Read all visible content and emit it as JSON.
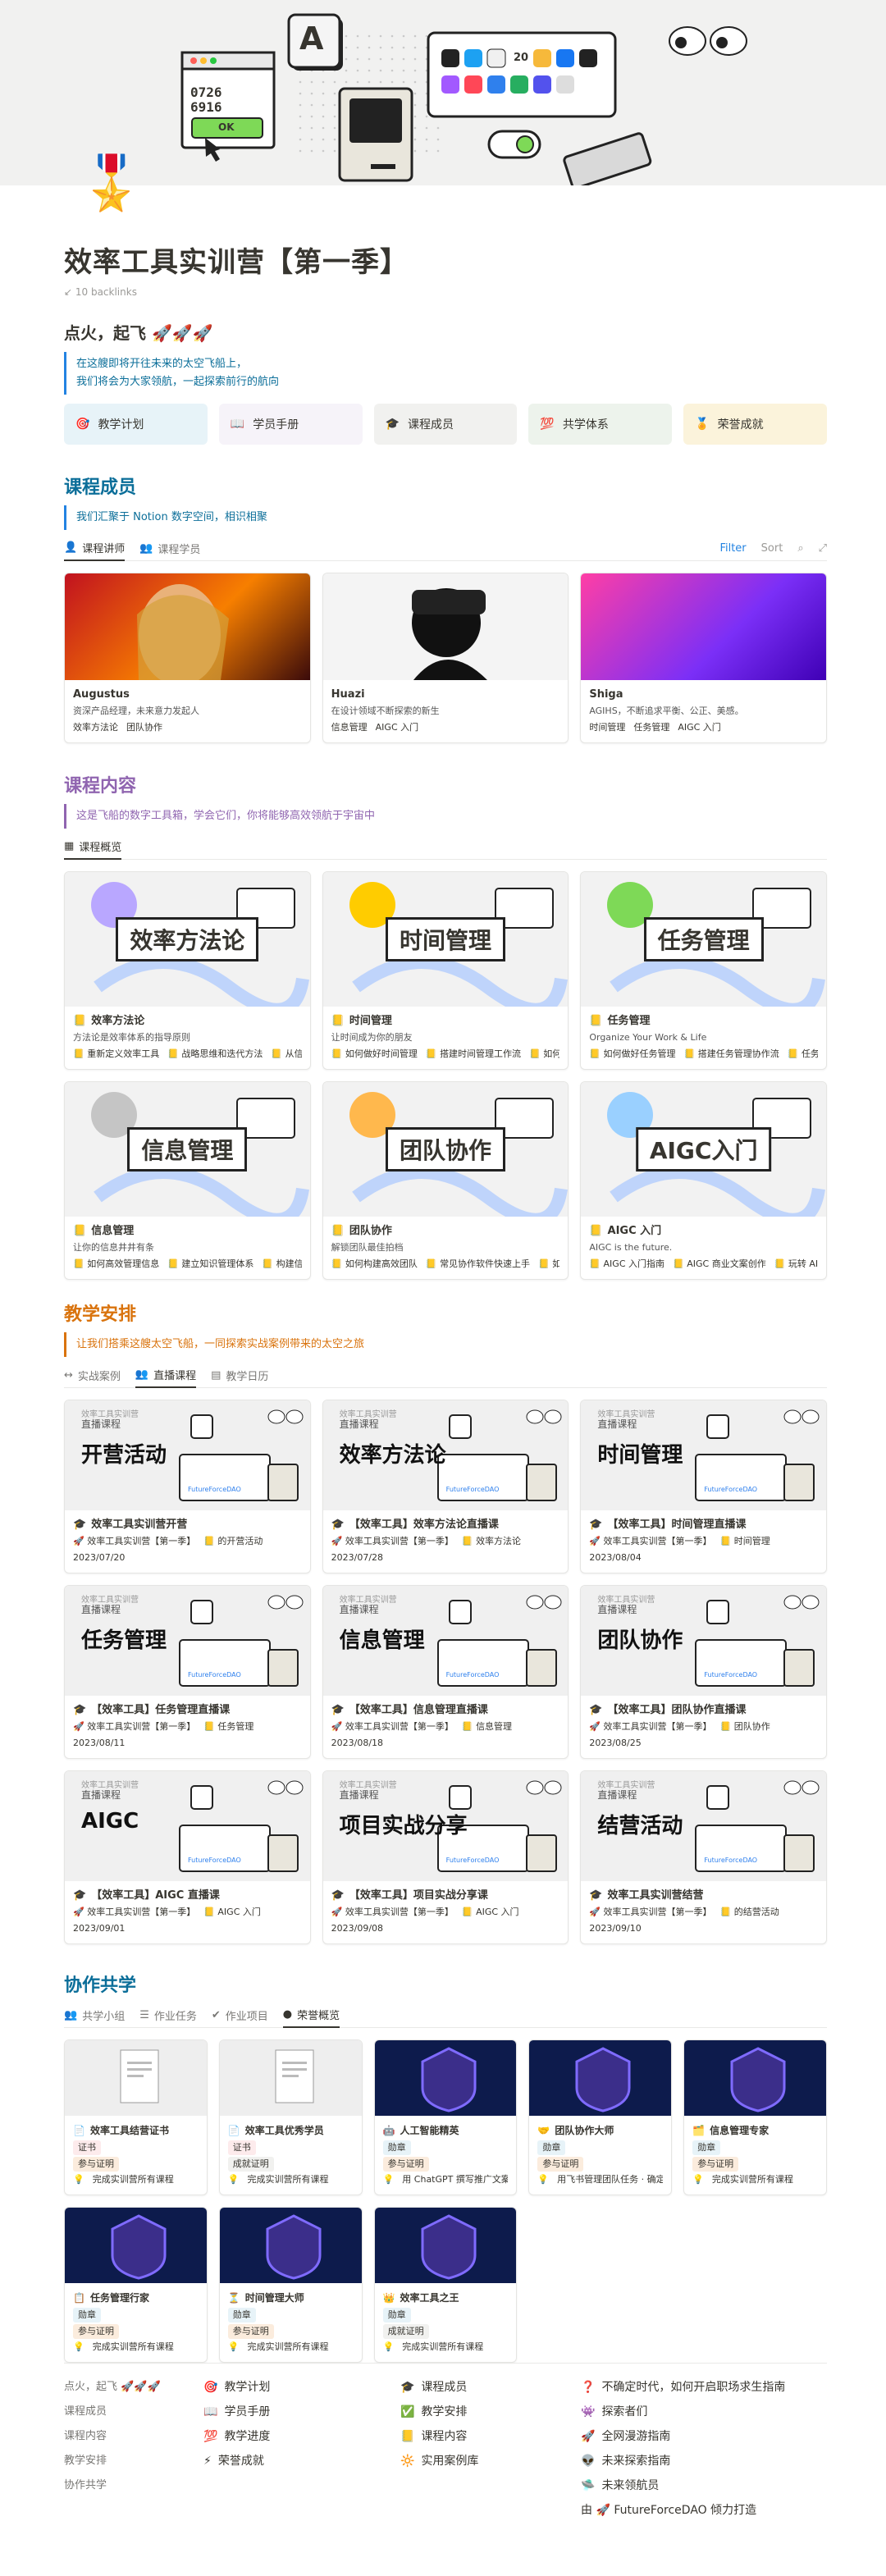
{
  "page": {
    "title": "效率工具实训营【第一季】",
    "backlinks": "10 backlinks",
    "icon": "🎖️"
  },
  "cover": {
    "window_code": "0726\n6916",
    "ok": "OK",
    "date_icon": "20"
  },
  "intro": {
    "heading": "点火，起飞 🚀🚀🚀",
    "callout": [
      "在这艘即将开往未来的太空飞船上，",
      "我们将会为大家领航，一起探索前行的航向"
    ]
  },
  "nav": [
    {
      "icon": "🎯",
      "label": "教学计划",
      "bg": "#e7f3f8"
    },
    {
      "icon": "📖",
      "label": "学员手册",
      "bg": "#f6f3f9"
    },
    {
      "icon": "🎓",
      "label": "课程成员",
      "bg": "#f1f1ef"
    },
    {
      "icon": "💯",
      "label": "共学体系",
      "bg": "#edf3ec"
    },
    {
      "icon": "🏅",
      "label": "荣誉成就",
      "bg": "#fbf3db"
    }
  ],
  "members": {
    "title": "课程成员",
    "color": "#0b6e99",
    "callout": "我们汇聚于 Notion 数字空间，相识相聚",
    "tabs": [
      "课程讲师",
      "课程学员"
    ],
    "filter": "Filter",
    "sort": "Sort",
    "cards": [
      {
        "name": "Augustus",
        "desc": "资深产品经理，未来意力发起人",
        "tags": [
          "效率方法论",
          "团队协作"
        ],
        "bg": "linear-gradient(135deg,#c1121f,#f77f00 55%,#3a0a0a)"
      },
      {
        "name": "Huazi",
        "desc": "在设计领域不断探索的新生",
        "tags": [
          "信息管理",
          "AIGC 入门"
        ],
        "bg": "#f4f4f4"
      },
      {
        "name": "Shiga",
        "desc": "AGIHS，不断追求平衡、公正、美感。",
        "tags": [
          "时间管理",
          "任务管理",
          "AIGC 入门"
        ],
        "bg": "linear-gradient(135deg,#ff3ea5,#7b2ff7 60%,#3f00b5)"
      }
    ]
  },
  "content": {
    "title": "课程内容",
    "color": "#9065b0",
    "callout": "这是飞船的数字工具箱，学会它们，你将能够高效领航于宇宙中",
    "tab": "课程概览",
    "cards": [
      {
        "label": "效率方法论",
        "name": "效率方法论",
        "desc": "方法论是效率体系的指导原则",
        "tags": [
          "重新定义效率工具",
          "战略思维和迭代方法",
          "从信息系统"
        ]
      },
      {
        "label": "时间管理",
        "name": "时间管理",
        "desc": "让时间成为你的朋友",
        "tags": [
          "如何做好时间管理",
          "搭建时间管理工作流",
          "如何确定优"
        ]
      },
      {
        "label": "任务管理",
        "name": "任务管理",
        "desc": "Organize Your Work & Life",
        "tags": [
          "如何做好任务管理",
          "搭建任务管理协作流",
          "任务管理从"
        ]
      },
      {
        "label": "信息管理",
        "name": "信息管理",
        "desc": "让你的信息井井有条",
        "tags": [
          "如何高效管理信息",
          "建立知识管理体系",
          "构建信息管理"
        ]
      },
      {
        "label": "团队协作",
        "name": "团队协作",
        "desc": "解锁团队最佳拍档",
        "tags": [
          "如何构建高效团队",
          "常见协作软件快速上手",
          "如何建立"
        ]
      },
      {
        "label": "AIGC入门",
        "name": "AIGC 入门",
        "desc": "AIGC is the future.",
        "tags": [
          "AIGC 入门指南",
          "AIGC 商业文案创作",
          "玩转 AIGC 文生"
        ]
      }
    ]
  },
  "schedule": {
    "title": "教学安排",
    "color": "#d9730d",
    "callout": "让我们搭乘这艘太空飞船，一同探索实战案例带来的太空之旅",
    "tabs": [
      "实战案例",
      "直播课程",
      "教学日历"
    ],
    "brand": "FutureForceDAO",
    "kicker": "效率工具实训营",
    "sub": "直播课程",
    "cards": [
      {
        "big": "开营活动",
        "name": "效率工具实训营开营",
        "course": "效率工具实训营【第一季】",
        "topic": "的开营活动",
        "date": "2023/07/20"
      },
      {
        "big": "效率方法论",
        "name": "【效率工具】效率方法论直播课",
        "course": "效率工具实训营【第一季】",
        "topic": "效率方法论",
        "date": "2023/07/28"
      },
      {
        "big": "时间管理",
        "name": "【效率工具】时间管理直播课",
        "course": "效率工具实训营【第一季】",
        "topic": "时间管理",
        "date": "2023/08/04"
      },
      {
        "big": "任务管理",
        "name": "【效率工具】任务管理直播课",
        "course": "效率工具实训营【第一季】",
        "topic": "任务管理",
        "date": "2023/08/11"
      },
      {
        "big": "信息管理",
        "name": "【效率工具】信息管理直播课",
        "course": "效率工具实训营【第一季】",
        "topic": "信息管理",
        "date": "2023/08/18"
      },
      {
        "big": "团队协作",
        "name": "【效率工具】团队协作直播课",
        "course": "效率工具实训营【第一季】",
        "topic": "团队协作",
        "date": "2023/08/25"
      },
      {
        "big": "AIGC",
        "name": "【效率工具】AIGC 直播课",
        "course": "效率工具实训营【第一季】",
        "topic": "AIGC 入门",
        "date": "2023/09/01"
      },
      {
        "big": "项目实战分享",
        "name": "【效率工具】项目实战分享课",
        "course": "效率工具实训营【第一季】",
        "topic": "AIGC 入门",
        "date": "2023/09/08"
      },
      {
        "big": "结营活动",
        "name": "效率工具实训营结营",
        "course": "效率工具实训营【第一季】",
        "topic": "的结营活动",
        "date": "2023/09/10"
      }
    ]
  },
  "cowork": {
    "title": "协作共学",
    "color": "#0b6e99",
    "tabs": [
      "共学小组",
      "作业任务",
      "作业项目",
      "荣誉概览"
    ],
    "cards": [
      {
        "icon": "📄",
        "name": "效率工具结营证书",
        "type": "证书",
        "proof": "参与证明",
        "desc": "完成实训营所有课程",
        "dark": false
      },
      {
        "icon": "📄",
        "name": "效率工具优秀学员",
        "type": "证书",
        "proof": "成就证明",
        "desc": "完成实训营所有课程",
        "dark": false
      },
      {
        "icon": "🤖",
        "name": "人工智能精英",
        "type": "勋章",
        "proof": "参与证明",
        "desc": "用 ChatGPT 撰写推广文案",
        "dark": true
      },
      {
        "icon": "🤝",
        "name": "团队协作大师",
        "type": "勋章",
        "proof": "参与证明",
        "desc": "用飞书管理团队任务 · 确定共",
        "dark": true
      },
      {
        "icon": "🗂️",
        "name": "信息管理专家",
        "type": "勋章",
        "proof": "参与证明",
        "desc": "完成实训营所有课程",
        "dark": true
      },
      {
        "icon": "📋",
        "name": "任务管理行家",
        "type": "勋章",
        "proof": "参与证明",
        "desc": "完成实训营所有课程",
        "dark": true
      },
      {
        "icon": "⏳",
        "name": "时间管理大师",
        "type": "勋章",
        "proof": "参与证明",
        "desc": "完成实训营所有课程",
        "dark": true
      },
      {
        "icon": "👑",
        "name": "效率工具之王",
        "type": "勋章",
        "proof": "成就证明",
        "desc": "完成实训营所有课程",
        "dark": true
      }
    ]
  },
  "footer": {
    "col1": [
      "点火，起飞 🚀🚀🚀",
      "课程成员",
      "课程内容",
      "教学安排",
      "协作共学"
    ],
    "col2": [
      {
        "i": "🎯",
        "t": "教学计划"
      },
      {
        "i": "📖",
        "t": "学员手册"
      },
      {
        "i": "💯",
        "t": "教学进度"
      },
      {
        "i": "⚡",
        "t": "荣誉成就"
      }
    ],
    "col3": [
      {
        "i": "🎓",
        "t": "课程成员"
      },
      {
        "i": "✅",
        "t": "教学安排"
      },
      {
        "i": "📒",
        "t": "课程内容"
      },
      {
        "i": "🔆",
        "t": "实用案例库"
      }
    ],
    "col4": [
      {
        "i": "❓",
        "t": "不确定时代，如何开启职场求生指南"
      },
      {
        "i": "👾",
        "t": "探索者们"
      },
      {
        "i": "🚀",
        "t": "全网漫游指南"
      },
      {
        "i": "👽",
        "t": "未来探索指南"
      },
      {
        "i": "🛸",
        "t": "未来领航员"
      }
    ],
    "credit": "由 🚀 FutureForceDAO 倾力打造"
  }
}
